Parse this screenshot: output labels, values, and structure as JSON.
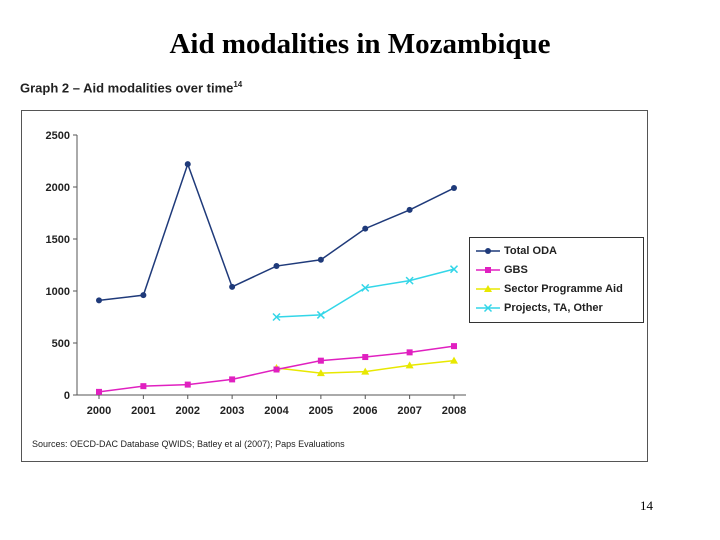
{
  "slide": {
    "title": "Aid modalities in Mozambique",
    "page_number": "14"
  },
  "graph": {
    "caption": "Graph 2 – Aid modalities over time",
    "caption_footnote": "14",
    "source": "Sources: OECD-DAC Database QWIDS; Batley et al (2007); Paps Evaluations"
  },
  "chart_data": {
    "type": "line",
    "title": "Aid modalities over time",
    "xlabel": "",
    "ylabel": "",
    "x": [
      "2000",
      "2001",
      "2002",
      "2003",
      "2004",
      "2005",
      "2006",
      "2007",
      "2008"
    ],
    "ylim": [
      0,
      2500
    ],
    "yticks": [
      0,
      500,
      1000,
      1500,
      2000,
      2500
    ],
    "grid": false,
    "legend_position": "right",
    "series": [
      {
        "name": "Total ODA",
        "color": "#1f3a7a",
        "marker": "diamond",
        "values": [
          910,
          960,
          2220,
          1040,
          1240,
          1300,
          1600,
          1780,
          1990
        ]
      },
      {
        "name": "GBS",
        "color": "#e020c0",
        "marker": "square",
        "values": [
          30,
          85,
          100,
          150,
          245,
          330,
          365,
          410,
          470
        ]
      },
      {
        "name": "Sector Programme Aid",
        "color": "#e8e800",
        "marker": "triangle",
        "values": [
          null,
          null,
          null,
          null,
          260,
          210,
          225,
          285,
          330
        ]
      },
      {
        "name": "Projects, TA, Other",
        "color": "#33d6e8",
        "marker": "x",
        "values": [
          null,
          null,
          null,
          null,
          750,
          770,
          1030,
          1100,
          1210
        ]
      }
    ]
  }
}
